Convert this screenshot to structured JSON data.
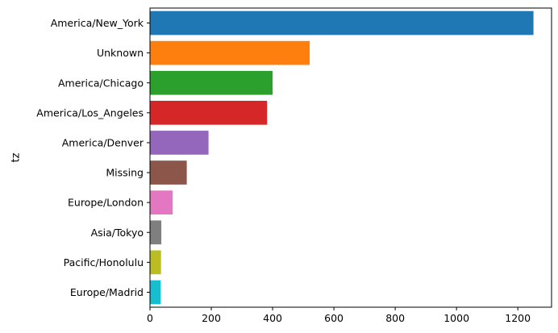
{
  "chart_data": {
    "type": "bar",
    "orientation": "horizontal",
    "title": "",
    "xlabel": "",
    "ylabel": "tz",
    "xlim": [
      0,
      1310
    ],
    "xticks": [
      0,
      200,
      400,
      600,
      800,
      1000,
      1200
    ],
    "grid": false,
    "legend": "none",
    "categories": [
      "America/New_York",
      "Unknown",
      "America/Chicago",
      "America/Los_Angeles",
      "America/Denver",
      "Missing",
      "Europe/London",
      "Asia/Tokyo",
      "Pacific/Honolulu",
      "Europe/Madrid"
    ],
    "values": [
      1251,
      521,
      400,
      382,
      191,
      120,
      74,
      37,
      36,
      35
    ],
    "colors": [
      "#1f77b4",
      "#ff7f0e",
      "#2ca02c",
      "#d62728",
      "#9467bd",
      "#8c564b",
      "#e377c2",
      "#7f7f7f",
      "#bcbd22",
      "#17becf"
    ]
  }
}
